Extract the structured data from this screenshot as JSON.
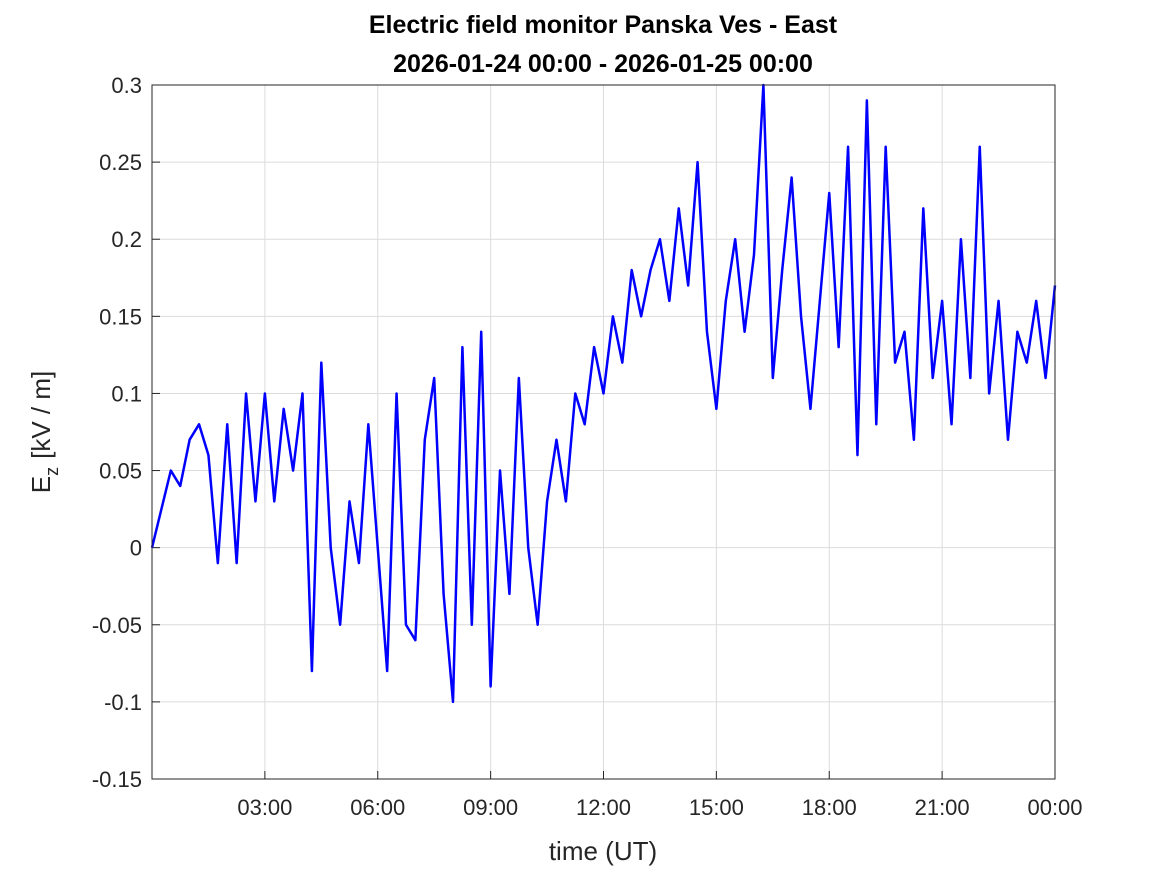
{
  "chart_data": {
    "type": "line",
    "title": "Electric field monitor Panska Ves - East",
    "subtitle": "2026-01-24 00:00 - 2026-01-25 00:00",
    "xlabel": "time (UT)",
    "ylabel": {
      "base": "E",
      "subscript": "z",
      "unit": "[kV / m]"
    },
    "color": "#0000ff",
    "grid": true,
    "xlim": [
      0,
      24
    ],
    "ylim": [
      -0.15,
      0.3
    ],
    "xticks": [
      {
        "value": 3,
        "label": "03:00"
      },
      {
        "value": 6,
        "label": "06:00"
      },
      {
        "value": 9,
        "label": "09:00"
      },
      {
        "value": 12,
        "label": "12:00"
      },
      {
        "value": 15,
        "label": "15:00"
      },
      {
        "value": 18,
        "label": "18:00"
      },
      {
        "value": 21,
        "label": "21:00"
      },
      {
        "value": 24,
        "label": "00:00"
      }
    ],
    "yticks": [
      -0.15,
      -0.1,
      -0.05,
      0,
      0.05,
      0.1,
      0.15,
      0.2,
      0.25,
      0.3
    ],
    "x": [
      0,
      0.25,
      0.5,
      0.75,
      1,
      1.25,
      1.5,
      1.75,
      2,
      2.25,
      2.5,
      2.75,
      3,
      3.25,
      3.5,
      3.75,
      4,
      4.25,
      4.5,
      4.75,
      5,
      5.25,
      5.5,
      5.75,
      6,
      6.25,
      6.5,
      6.75,
      7,
      7.25,
      7.5,
      7.75,
      8,
      8.25,
      8.5,
      8.75,
      9,
      9.25,
      9.5,
      9.75,
      10,
      10.25,
      10.5,
      10.75,
      11,
      11.25,
      11.5,
      11.75,
      12,
      12.25,
      12.5,
      12.75,
      13,
      13.25,
      13.5,
      13.75,
      14,
      14.25,
      14.5,
      14.75,
      15,
      15.25,
      15.5,
      15.75,
      16,
      16.25,
      16.5,
      16.75,
      17,
      17.25,
      17.5,
      17.75,
      18,
      18.25,
      18.5,
      18.75,
      19,
      19.25,
      19.5,
      19.75,
      20,
      20.25,
      20.5,
      20.75,
      21,
      21.25,
      21.5,
      21.75,
      22,
      22.25,
      22.5,
      22.75,
      23,
      23.25,
      23.5,
      23.75,
      24
    ],
    "values": [
      0.0,
      0.025,
      0.05,
      0.04,
      0.07,
      0.08,
      0.06,
      -0.01,
      0.08,
      -0.01,
      0.1,
      0.03,
      0.1,
      0.03,
      0.09,
      0.05,
      0.1,
      -0.08,
      0.12,
      0.0,
      -0.05,
      0.03,
      -0.01,
      0.08,
      0.0,
      -0.08,
      0.1,
      -0.05,
      -0.06,
      0.07,
      0.11,
      -0.03,
      -0.1,
      0.13,
      -0.05,
      0.14,
      -0.09,
      0.05,
      -0.03,
      0.11,
      0.0,
      -0.05,
      0.03,
      0.07,
      0.03,
      0.1,
      0.08,
      0.13,
      0.1,
      0.15,
      0.12,
      0.18,
      0.15,
      0.18,
      0.2,
      0.16,
      0.22,
      0.17,
      0.25,
      0.14,
      0.09,
      0.16,
      0.2,
      0.14,
      0.19,
      0.3,
      0.11,
      0.18,
      0.24,
      0.15,
      0.09,
      0.16,
      0.23,
      0.13,
      0.26,
      0.06,
      0.29,
      0.08,
      0.26,
      0.12,
      0.14,
      0.07,
      0.22,
      0.11,
      0.16,
      0.08,
      0.2,
      0.11,
      0.26,
      0.1,
      0.16,
      0.07,
      0.14,
      0.12,
      0.16,
      0.11,
      0.17
    ]
  }
}
